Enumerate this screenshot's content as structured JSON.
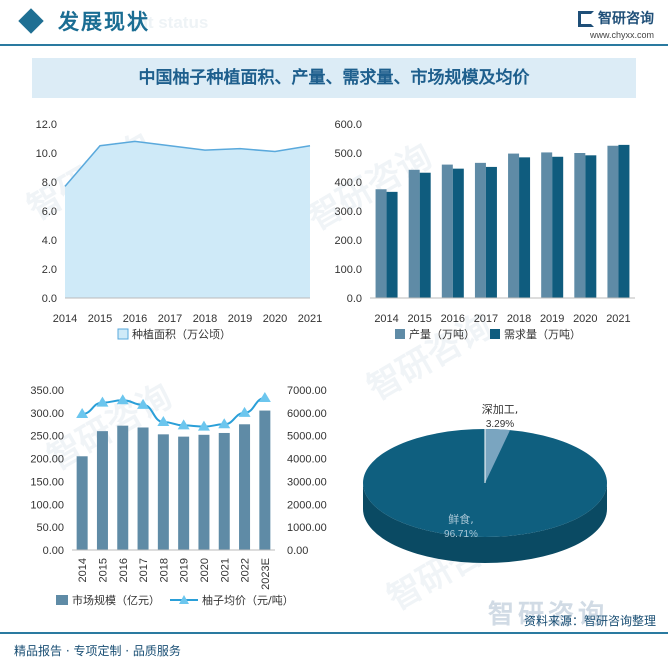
{
  "header": {
    "title": "发展现状",
    "subtitle_en": "ent status",
    "brand_name": "智研咨询",
    "brand_url": "www.chyxx.com"
  },
  "banner": {
    "title": "中国柚子种植面积、产量、需求量、市场规模及均价"
  },
  "footer": {
    "left": "精品报告 · 专项定制 · 品质服务",
    "source": "资料来源：智研咨询整理",
    "logo": "智研咨询"
  },
  "colors": {
    "area_fill": "#cfeaf8",
    "area_line": "#5aa9dc",
    "bar_light": "#5f8ba6",
    "bar_dark": "#0f5c7e",
    "line_price": "#2a9fd8",
    "pie_main": "#0f5f7f",
    "pie_side": "#0a4a63",
    "pie_slice": "#7aa5c0"
  },
  "chart_data": [
    {
      "type": "area",
      "categories": [
        "2014",
        "2015",
        "2016",
        "2017",
        "2018",
        "2019",
        "2020",
        "2021"
      ],
      "series": [
        {
          "name": "种植面积（万公顷）",
          "values": [
            7.7,
            10.5,
            10.8,
            10.5,
            10.2,
            10.3,
            10.1,
            10.5
          ]
        }
      ],
      "ylim": [
        0,
        12
      ],
      "yticks": [
        "0.0",
        "2.0",
        "4.0",
        "6.0",
        "8.0",
        "10.0",
        "12.0"
      ],
      "legend": "bottom"
    },
    {
      "type": "bar",
      "categories": [
        "2014",
        "2015",
        "2016",
        "2017",
        "2018",
        "2019",
        "2020",
        "2021"
      ],
      "series": [
        {
          "name": "产量（万吨）",
          "values": [
            375,
            442,
            460,
            466,
            498,
            502,
            500,
            525
          ]
        },
        {
          "name": "需求量（万吨）",
          "values": [
            366,
            432,
            446,
            452,
            485,
            487,
            492,
            528
          ]
        }
      ],
      "ylim": [
        0,
        600
      ],
      "yticks": [
        "0.0",
        "100.0",
        "200.0",
        "300.0",
        "400.0",
        "500.0",
        "600.0"
      ],
      "legend": "bottom"
    },
    {
      "type": "bar",
      "categories": [
        "2014",
        "2015",
        "2016",
        "2017",
        "2018",
        "2019",
        "2020",
        "2021",
        "2022",
        "2023E"
      ],
      "series": [
        {
          "name": "市场规模（亿元）",
          "axis": "left",
          "values": [
            205,
            260,
            272,
            268,
            253,
            248,
            252,
            256,
            275,
            305
          ]
        },
        {
          "name": "柚子均价（元/吨）",
          "axis": "right",
          "type": "line",
          "values": [
            5950,
            6450,
            6550,
            6350,
            5600,
            5450,
            5400,
            5500,
            6000,
            6650
          ]
        }
      ],
      "ylim": [
        0,
        350
      ],
      "ylim_right": [
        0,
        7000
      ],
      "yticks": [
        "0.00",
        "50.00",
        "100.00",
        "150.00",
        "200.00",
        "250.00",
        "300.00",
        "350.00"
      ],
      "yticks_right": [
        "0.00",
        "1000.00",
        "2000.00",
        "3000.00",
        "4000.00",
        "5000.00",
        "6000.00",
        "7000.00"
      ],
      "legend": "bottom"
    },
    {
      "type": "pie",
      "slices": [
        {
          "label": "鲜食,",
          "pct": "96.71%",
          "value": 96.71
        },
        {
          "label": "深加工,",
          "pct": "3.29%",
          "value": 3.29
        }
      ]
    }
  ]
}
